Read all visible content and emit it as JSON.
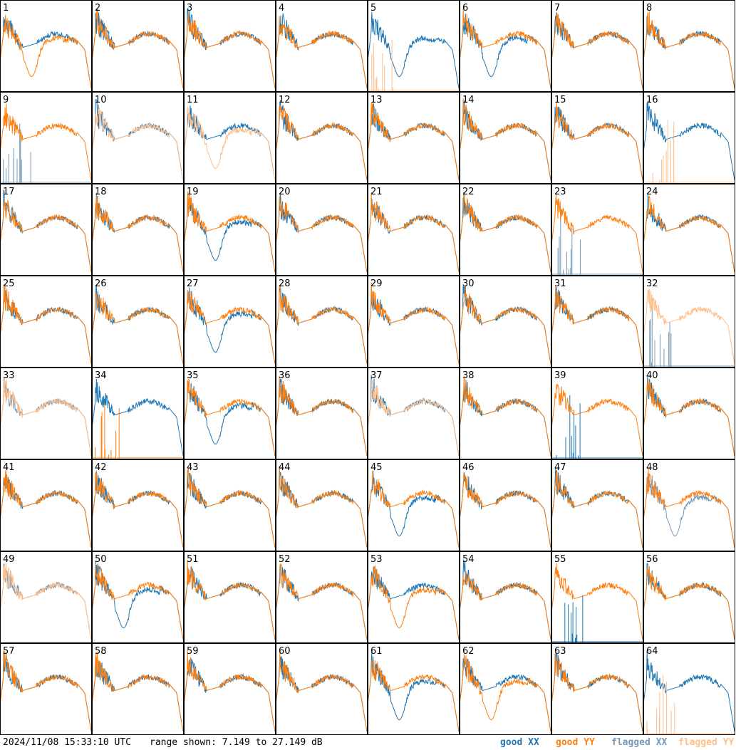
{
  "footer": {
    "timestamp": "2024/11/08 15:33:10 UTC",
    "range": "range shown: 7.149 to 27.149 dB"
  },
  "legend": [
    {
      "label_word": "good",
      "label_pol": "XX",
      "color": "#1f77b4"
    },
    {
      "label_word": "good",
      "label_pol": "YY",
      "color": "#ff7f0e"
    },
    {
      "label_word": "flagged",
      "label_pol": "XX",
      "color": "#7799b6"
    },
    {
      "label_word": "flagged",
      "label_pol": "YY",
      "color": "#ffbe8a"
    }
  ],
  "colors": {
    "good_xx": "#1f77b4",
    "good_yy": "#ff7f0e",
    "flagged_xx": "#7799b6",
    "flagged_yy": "#ffbe8a",
    "panel_border": "#000000"
  },
  "chart_data": {
    "type": "line",
    "layout": {
      "rows": 8,
      "cols": 8
    },
    "ylim_db": [
      7.149,
      27.149
    ],
    "series_names": [
      "XX",
      "YY"
    ],
    "panels": [
      {
        "id": 1,
        "xx": "standard",
        "yy": "dip",
        "xx_flagged": false,
        "yy_flagged": false
      },
      {
        "id": 2,
        "xx": "standard",
        "yy": "standard",
        "xx_flagged": false,
        "yy_flagged": false
      },
      {
        "id": 3,
        "xx": "standard",
        "yy": "standard",
        "xx_flagged": false,
        "yy_flagged": false
      },
      {
        "id": 4,
        "xx": "standard",
        "yy": "standard",
        "xx_flagged": false,
        "yy_flagged": false
      },
      {
        "id": 5,
        "xx": "dip",
        "yy": "spikes",
        "xx_flagged": false,
        "yy_flagged": true
      },
      {
        "id": 6,
        "xx": "dip",
        "yy": "standard",
        "xx_flagged": false,
        "yy_flagged": false
      },
      {
        "id": 7,
        "xx": "standard",
        "yy": "standard",
        "xx_flagged": false,
        "yy_flagged": false
      },
      {
        "id": 8,
        "xx": "standard",
        "yy": "standard",
        "xx_flagged": false,
        "yy_flagged": false
      },
      {
        "id": 9,
        "xx": "spikes",
        "yy": "standard",
        "xx_flagged": true,
        "yy_flagged": false
      },
      {
        "id": 10,
        "xx": "standard",
        "yy": "standard",
        "xx_flagged": false,
        "yy_flagged": true
      },
      {
        "id": 11,
        "xx": "standard",
        "yy": "dip",
        "xx_flagged": false,
        "yy_flagged": true
      },
      {
        "id": 12,
        "xx": "standard",
        "yy": "standard",
        "xx_flagged": false,
        "yy_flagged": false
      },
      {
        "id": 13,
        "xx": "standard",
        "yy": "standard",
        "xx_flagged": false,
        "yy_flagged": false
      },
      {
        "id": 14,
        "xx": "standard",
        "yy": "standard",
        "xx_flagged": false,
        "yy_flagged": false
      },
      {
        "id": 15,
        "xx": "standard",
        "yy": "standard",
        "xx_flagged": false,
        "yy_flagged": false
      },
      {
        "id": 16,
        "xx": "standard",
        "yy": "spikes",
        "xx_flagged": false,
        "yy_flagged": true
      },
      {
        "id": 17,
        "xx": "standard",
        "yy": "standard",
        "xx_flagged": false,
        "yy_flagged": false
      },
      {
        "id": 18,
        "xx": "standard",
        "yy": "standard",
        "xx_flagged": false,
        "yy_flagged": false
      },
      {
        "id": 19,
        "xx": "dip",
        "yy": "standard",
        "xx_flagged": false,
        "yy_flagged": false
      },
      {
        "id": 20,
        "xx": "standard",
        "yy": "standard",
        "xx_flagged": false,
        "yy_flagged": false
      },
      {
        "id": 21,
        "xx": "standard",
        "yy": "standard",
        "xx_flagged": false,
        "yy_flagged": false
      },
      {
        "id": 22,
        "xx": "standard",
        "yy": "standard",
        "xx_flagged": false,
        "yy_flagged": false
      },
      {
        "id": 23,
        "xx": "spikes",
        "yy": "standard",
        "xx_flagged": true,
        "yy_flagged": false
      },
      {
        "id": 24,
        "xx": "standard",
        "yy": "standard",
        "xx_flagged": false,
        "yy_flagged": false
      },
      {
        "id": 25,
        "xx": "standard",
        "yy": "standard",
        "xx_flagged": false,
        "yy_flagged": false
      },
      {
        "id": 26,
        "xx": "standard",
        "yy": "standard",
        "xx_flagged": false,
        "yy_flagged": false
      },
      {
        "id": 27,
        "xx": "dip",
        "yy": "standard",
        "xx_flagged": false,
        "yy_flagged": false
      },
      {
        "id": 28,
        "xx": "standard",
        "yy": "standard",
        "xx_flagged": false,
        "yy_flagged": false
      },
      {
        "id": 29,
        "xx": "standard",
        "yy": "standard",
        "xx_flagged": false,
        "yy_flagged": false
      },
      {
        "id": 30,
        "xx": "standard",
        "yy": "standard",
        "xx_flagged": false,
        "yy_flagged": false
      },
      {
        "id": 31,
        "xx": "standard",
        "yy": "standard",
        "xx_flagged": false,
        "yy_flagged": false
      },
      {
        "id": 32,
        "xx": "spikes",
        "yy": "standard",
        "xx_flagged": true,
        "yy_flagged": true
      },
      {
        "id": 33,
        "xx": "standard",
        "yy": "standard",
        "xx_flagged": true,
        "yy_flagged": true
      },
      {
        "id": 34,
        "xx": "standard",
        "yy": "spikes",
        "xx_flagged": false,
        "yy_flagged": false
      },
      {
        "id": 35,
        "xx": "dip",
        "yy": "standard",
        "xx_flagged": false,
        "yy_flagged": false
      },
      {
        "id": 36,
        "xx": "standard",
        "yy": "standard",
        "xx_flagged": false,
        "yy_flagged": false
      },
      {
        "id": 37,
        "xx": "standard",
        "yy": "standard",
        "xx_flagged": false,
        "yy_flagged": true
      },
      {
        "id": 38,
        "xx": "standard",
        "yy": "standard",
        "xx_flagged": false,
        "yy_flagged": false
      },
      {
        "id": 39,
        "xx": "spikes",
        "yy": "standard",
        "xx_flagged": false,
        "yy_flagged": false
      },
      {
        "id": 40,
        "xx": "standard",
        "yy": "standard",
        "xx_flagged": false,
        "yy_flagged": false
      },
      {
        "id": 41,
        "xx": "standard",
        "yy": "standard",
        "xx_flagged": false,
        "yy_flagged": false
      },
      {
        "id": 42,
        "xx": "standard",
        "yy": "standard",
        "xx_flagged": false,
        "yy_flagged": false
      },
      {
        "id": 43,
        "xx": "standard",
        "yy": "standard",
        "xx_flagged": false,
        "yy_flagged": false
      },
      {
        "id": 44,
        "xx": "standard",
        "yy": "standard",
        "xx_flagged": false,
        "yy_flagged": false
      },
      {
        "id": 45,
        "xx": "dip",
        "yy": "standard",
        "xx_flagged": false,
        "yy_flagged": false
      },
      {
        "id": 46,
        "xx": "standard",
        "yy": "standard",
        "xx_flagged": false,
        "yy_flagged": false
      },
      {
        "id": 47,
        "xx": "standard",
        "yy": "standard",
        "xx_flagged": false,
        "yy_flagged": false
      },
      {
        "id": 48,
        "xx": "dip",
        "yy": "standard",
        "xx_flagged": true,
        "yy_flagged": false
      },
      {
        "id": 49,
        "xx": "standard",
        "yy": "standard",
        "xx_flagged": true,
        "yy_flagged": true
      },
      {
        "id": 50,
        "xx": "dip",
        "yy": "standard",
        "xx_flagged": false,
        "yy_flagged": false
      },
      {
        "id": 51,
        "xx": "standard",
        "yy": "standard",
        "xx_flagged": false,
        "yy_flagged": false
      },
      {
        "id": 52,
        "xx": "standard",
        "yy": "standard",
        "xx_flagged": false,
        "yy_flagged": false
      },
      {
        "id": 53,
        "xx": "standard",
        "yy": "dip",
        "xx_flagged": false,
        "yy_flagged": false
      },
      {
        "id": 54,
        "xx": "standard",
        "yy": "standard",
        "xx_flagged": false,
        "yy_flagged": false
      },
      {
        "id": 55,
        "xx": "spikes",
        "yy": "standard",
        "xx_flagged": false,
        "yy_flagged": false
      },
      {
        "id": 56,
        "xx": "standard",
        "yy": "standard",
        "xx_flagged": false,
        "yy_flagged": false
      },
      {
        "id": 57,
        "xx": "standard",
        "yy": "standard",
        "xx_flagged": false,
        "yy_flagged": false
      },
      {
        "id": 58,
        "xx": "standard",
        "yy": "standard",
        "xx_flagged": false,
        "yy_flagged": false
      },
      {
        "id": 59,
        "xx": "standard",
        "yy": "standard",
        "xx_flagged": false,
        "yy_flagged": false
      },
      {
        "id": 60,
        "xx": "standard",
        "yy": "standard",
        "xx_flagged": false,
        "yy_flagged": false
      },
      {
        "id": 61,
        "xx": "dip",
        "yy": "standard",
        "xx_flagged": false,
        "yy_flagged": false
      },
      {
        "id": 62,
        "xx": "standard",
        "yy": "dip",
        "xx_flagged": false,
        "yy_flagged": false
      },
      {
        "id": 63,
        "xx": "standard",
        "yy": "standard",
        "xx_flagged": false,
        "yy_flagged": false
      },
      {
        "id": 64,
        "xx": "standard",
        "yy": "spikes",
        "xx_flagged": false,
        "yy_flagged": true
      }
    ]
  }
}
